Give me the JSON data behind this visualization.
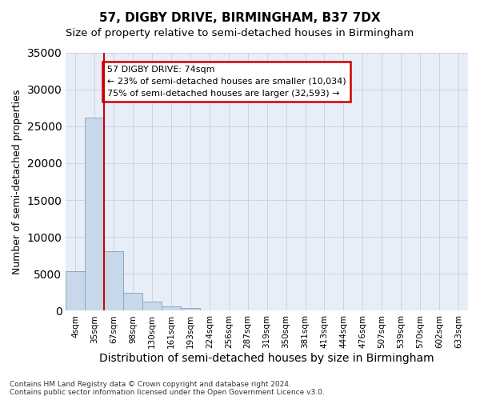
{
  "title": "57, DIGBY DRIVE, BIRMINGHAM, B37 7DX",
  "subtitle": "Size of property relative to semi-detached houses in Birmingham",
  "xlabel": "Distribution of semi-detached houses by size in Birmingham",
  "ylabel": "Number of semi-detached properties",
  "footnote1": "Contains HM Land Registry data © Crown copyright and database right 2024.",
  "footnote2": "Contains public sector information licensed under the Open Government Licence v3.0.",
  "categories": [
    "4sqm",
    "35sqm",
    "67sqm",
    "98sqm",
    "130sqm",
    "161sqm",
    "193sqm",
    "224sqm",
    "256sqm",
    "287sqm",
    "319sqm",
    "350sqm",
    "381sqm",
    "413sqm",
    "444sqm",
    "476sqm",
    "507sqm",
    "539sqm",
    "570sqm",
    "602sqm",
    "633sqm"
  ],
  "bar_values": [
    5400,
    26200,
    8100,
    2400,
    1200,
    600,
    400,
    0,
    0,
    0,
    0,
    0,
    0,
    0,
    0,
    0,
    0,
    0,
    0,
    0,
    0
  ],
  "bar_color": "#c8d8eb",
  "bar_edge_color": "#8aaabe",
  "property_line_label": "57 DIGBY DRIVE: 74sqm",
  "annotation_smaller": "← 23% of semi-detached houses are smaller (10,034)",
  "annotation_larger": "75% of semi-detached houses are larger (32,593) →",
  "annotation_box_color": "#ffffff",
  "annotation_box_edge": "#cc0000",
  "vline_color": "#cc0000",
  "ylim": [
    0,
    35000
  ],
  "yticks": [
    0,
    5000,
    10000,
    15000,
    20000,
    25000,
    30000,
    35000
  ],
  "grid_color": "#c5cfe0",
  "bg_color": "#e8eef8",
  "title_fontsize": 11,
  "subtitle_fontsize": 9.5,
  "ylabel_fontsize": 9,
  "xlabel_fontsize": 10
}
